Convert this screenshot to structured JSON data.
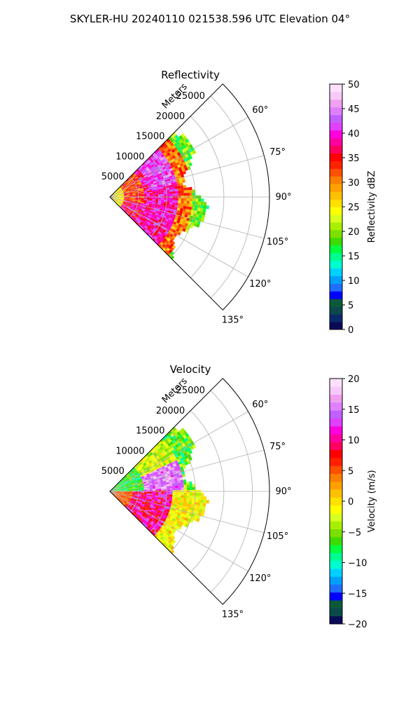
{
  "figure_title": "SKYLER-HU  20240110  021538.596 UTC Elevation 04°",
  "chart_data": [
    {
      "type": "heatmap",
      "subtype": "radar-ppi-sector",
      "title": "Reflectivity",
      "radial_axis_label": "Meters",
      "range_rings": [
        "5000",
        "10000",
        "15000",
        "20000",
        "25000"
      ],
      "azimuth_ticks": [
        "60°",
        "75°",
        "90°",
        "105°",
        "120°",
        "135°"
      ],
      "sector_azimuth_range_deg": [
        45,
        135
      ],
      "radial_range_m": [
        0,
        28000
      ],
      "data_max_range_m": 16000,
      "grid": true,
      "colorbar": {
        "label": "Reflectivity dBZ",
        "range": [
          0,
          50
        ],
        "ticks": [
          "0",
          "5",
          "10",
          "15",
          "20",
          "25",
          "30",
          "35",
          "40",
          "45",
          "50"
        ],
        "colors": [
          "#0a0a5a",
          "#0b2a6b",
          "#0c4a4a",
          "#0d5a3a",
          "#0000ff",
          "#1e6eff",
          "#00a0ff",
          "#00d2ff",
          "#00ffd0",
          "#00ff90",
          "#00ff40",
          "#3cdc00",
          "#7be000",
          "#a8f000",
          "#d8ff20",
          "#ffff00",
          "#ffe000",
          "#ffc000",
          "#ffa000",
          "#ff7f00",
          "#ff5000",
          "#ff2000",
          "#ff0000",
          "#ff0060",
          "#ff00a0",
          "#ff00e0",
          "#e040ff",
          "#c060ff",
          "#e080ff",
          "#f0a0f0",
          "#f8c8f8",
          "#fde0fd"
        ]
      }
    },
    {
      "type": "heatmap",
      "subtype": "radar-ppi-sector",
      "title": "Velocity",
      "radial_axis_label": "Meters",
      "range_rings": [
        "5000",
        "10000",
        "15000",
        "20000",
        "25000"
      ],
      "azimuth_ticks": [
        "60°",
        "75°",
        "90°",
        "105°",
        "120°",
        "135°"
      ],
      "sector_azimuth_range_deg": [
        45,
        135
      ],
      "radial_range_m": [
        0,
        28000
      ],
      "data_max_range_m": 16000,
      "grid": true,
      "colorbar": {
        "label": "Velocity (m/s)",
        "range": [
          -20,
          20
        ],
        "ticks": [
          "−20",
          "−15",
          "−10",
          "−5",
          "0",
          "5",
          "10",
          "15",
          "20"
        ],
        "colors": [
          "#0a0a5a",
          "#0c4a4a",
          "#0d5a3a",
          "#0000ff",
          "#1e6eff",
          "#00a0ff",
          "#00d2ff",
          "#00ffd0",
          "#00ff90",
          "#00ff40",
          "#3cdc00",
          "#7be000",
          "#a8f000",
          "#d8ff20",
          "#ffff00",
          "#ffe000",
          "#ffc000",
          "#ffa000",
          "#ff7f00",
          "#ff5000",
          "#ff2000",
          "#ff0000",
          "#ff0060",
          "#ff00a0",
          "#ff00e0",
          "#e040ff",
          "#c060ff",
          "#e080ff",
          "#f0a0f0",
          "#f8c8f8",
          "#fde0fd"
        ]
      }
    }
  ]
}
